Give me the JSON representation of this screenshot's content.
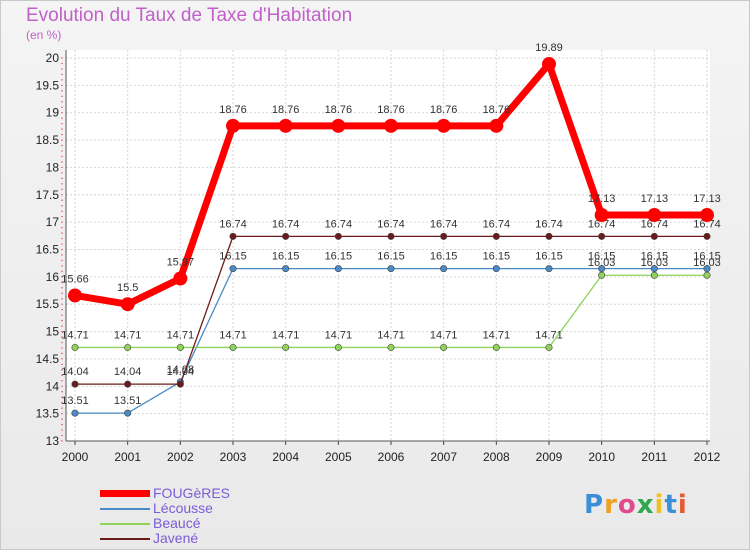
{
  "header": {
    "title": "Evolution du Taux de Taxe d'Habitation",
    "unit": "(en %)"
  },
  "branding": {
    "logo_text": "Proxiti"
  },
  "chart_data": {
    "type": "line",
    "title": "Evolution du Taux de Taxe d'Habitation",
    "ylabel": "(en %)",
    "xlabel": "",
    "x": [
      "2000",
      "2001",
      "2002",
      "2003",
      "2004",
      "2005",
      "2006",
      "2007",
      "2008",
      "2009",
      "2010",
      "2011",
      "2012"
    ],
    "ylim": [
      13,
      20
    ],
    "yticks": [
      "13",
      "13.5",
      "14",
      "14.5",
      "15",
      "15.5",
      "16",
      "16.5",
      "17",
      "17.5",
      "18",
      "18.5",
      "19",
      "19.5",
      "20"
    ],
    "grid": true,
    "legend_position": "bottom-left",
    "series": [
      {
        "name": "FOUGèRES",
        "color": "#ff0000",
        "values": [
          15.66,
          15.5,
          15.97,
          18.76,
          18.76,
          18.76,
          18.76,
          18.76,
          18.76,
          19.89,
          17.13,
          17.13,
          17.13
        ]
      },
      {
        "name": "Lécousse",
        "color": "#4a8ac8",
        "values": [
          13.51,
          13.51,
          14.08,
          16.15,
          16.15,
          16.15,
          16.15,
          16.15,
          16.15,
          16.15,
          16.15,
          16.15,
          16.15
        ]
      },
      {
        "name": "Beaucé",
        "color": "#8fd35a",
        "values": [
          14.71,
          14.71,
          14.71,
          14.71,
          14.71,
          14.71,
          14.71,
          14.71,
          14.71,
          14.71,
          16.03,
          16.03,
          16.03
        ]
      },
      {
        "name": "Javené",
        "color": "#6b1b1b",
        "values": [
          14.04,
          14.04,
          14.04,
          16.74,
          16.74,
          16.74,
          16.74,
          16.74,
          16.74,
          16.74,
          16.74,
          16.74,
          16.74
        ]
      }
    ]
  }
}
